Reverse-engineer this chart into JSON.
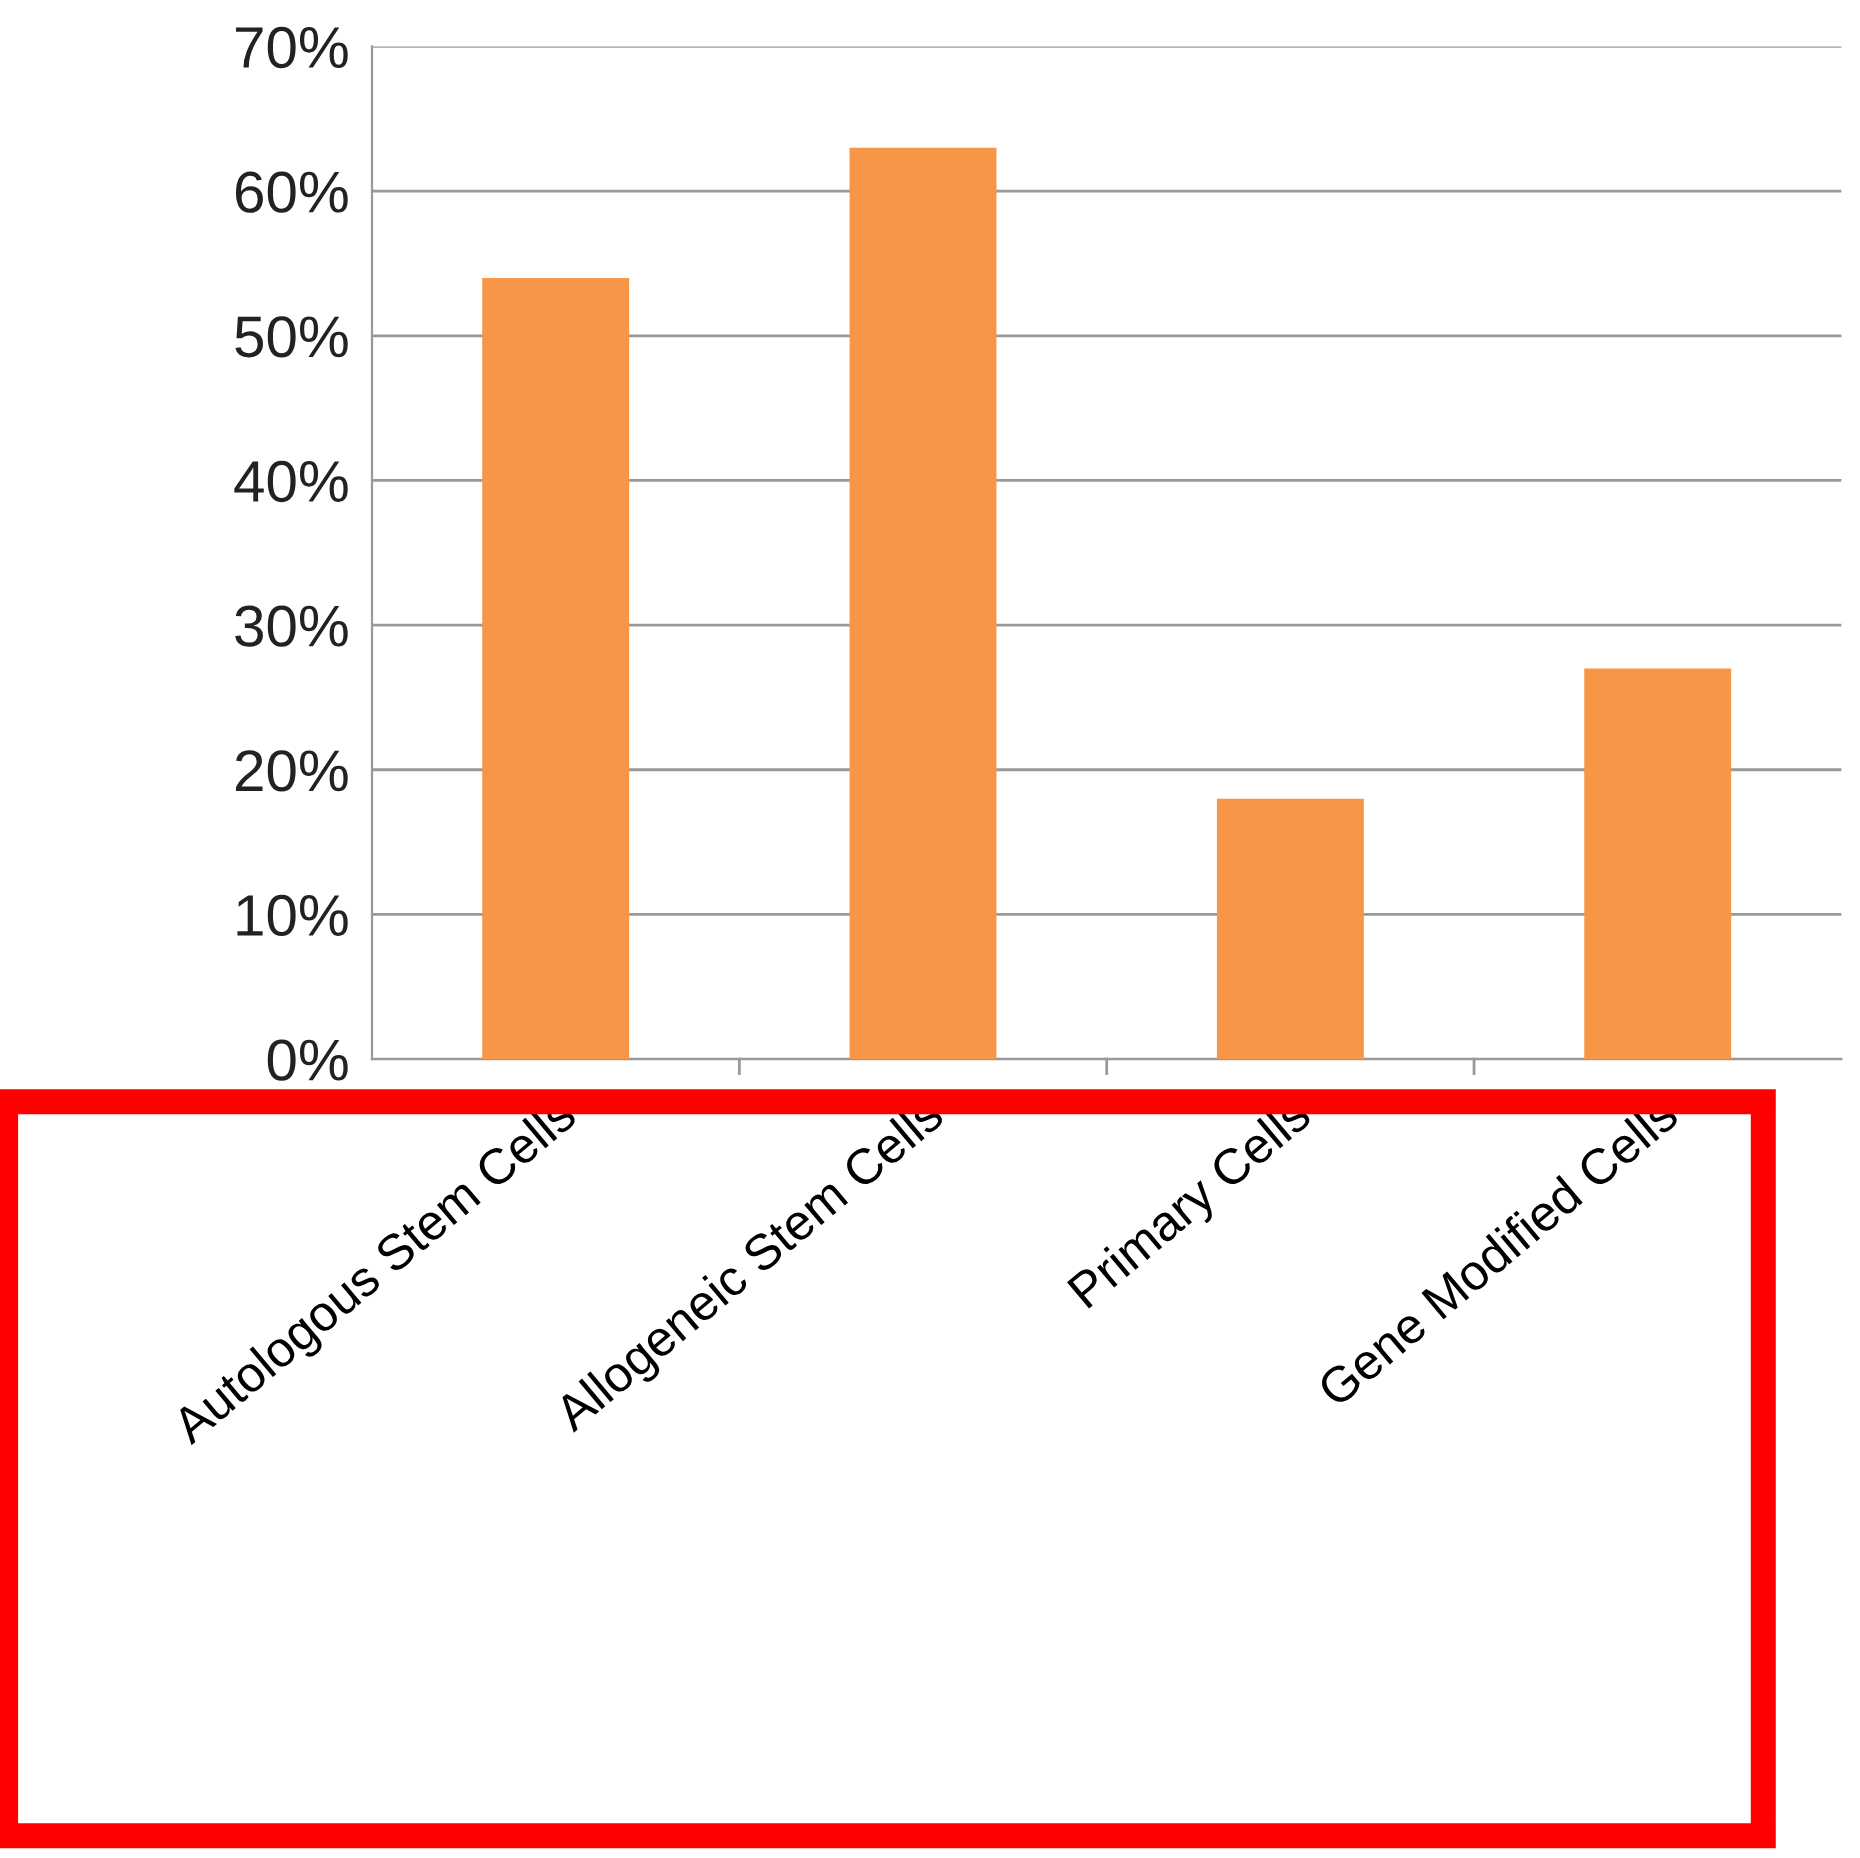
{
  "chart_data": {
    "type": "bar",
    "categories": [
      "Autologous Stem Cells",
      "Allogeneic Stem Cells",
      "Primary Cells",
      "Gene Modified Cells"
    ],
    "values": [
      54,
      63,
      18,
      27
    ],
    "color": "#f79646",
    "ylim": [
      0,
      70
    ],
    "yticks": [
      {
        "value": 0,
        "label": "0%"
      },
      {
        "value": 10,
        "label": "10%"
      },
      {
        "value": 20,
        "label": "20%"
      },
      {
        "value": 30,
        "label": "30%"
      },
      {
        "value": 40,
        "label": "40%"
      },
      {
        "value": 50,
        "label": "50%"
      },
      {
        "value": 60,
        "label": "60%"
      },
      {
        "value": 70,
        "label": "70%"
      }
    ],
    "grid": "y"
  }
}
